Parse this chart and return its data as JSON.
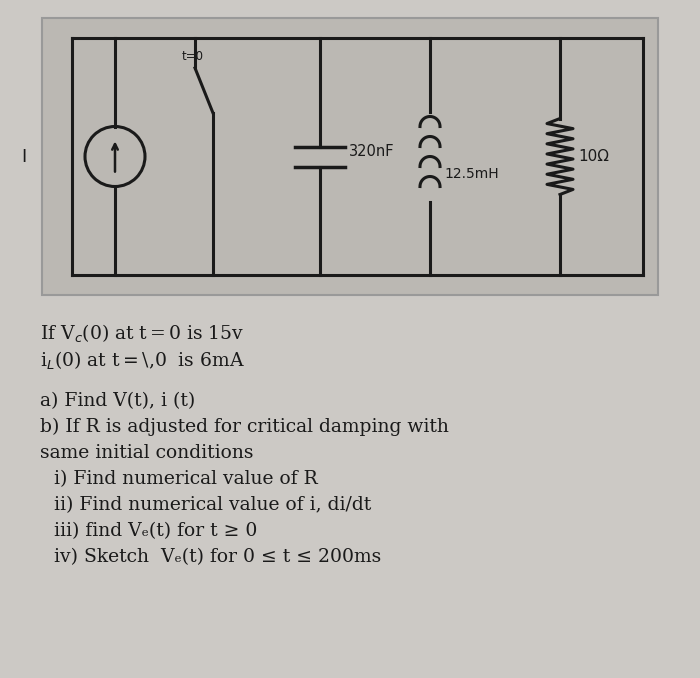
{
  "fig_bg": "#ccc9c5",
  "circuit_bg": "#bbb8b3",
  "lc": "#1a1a1a",
  "text_color": "#1a1a1a",
  "source_label": "I",
  "t0_label": "t=0",
  "cap_label": "320nF",
  "ind_label": "12.5mH",
  "res_label": "10Ω",
  "line1": "If V_c(0) at t = 0 is 15v",
  "line2": "i_L(0) at t= 0  is 6mA",
  "line_a": "a) Find V(t), i (t)",
  "line_b": "b) If R is adjusted for critical damping with",
  "line_c": "same initial conditions",
  "line_d": "i) Find numerical value of R",
  "line_e": "ii) Find numerical value of i, di/dt",
  "line_f": "iii) find V_c(t) for t ≥ 0",
  "line_g": "iv) Sketch  V_c(t) for 0 ≤ t ≤ 200ms"
}
